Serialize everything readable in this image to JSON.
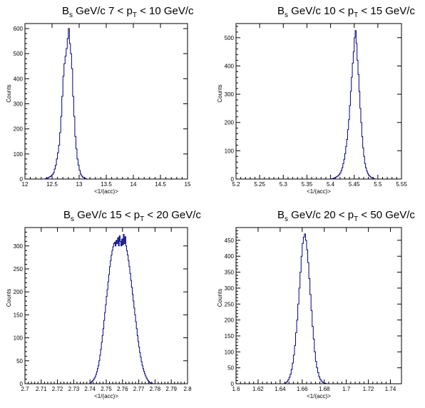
{
  "chart_data": [
    {
      "type": "histogram",
      "title": {
        "main": "B",
        "sub": "s",
        "mid": " GeV/c 7 < p",
        "sub2": "T",
        "end": " < 10 GeV/c"
      },
      "xlabel": "<1/(acc)>",
      "ylabel": "Counts",
      "xlim": [
        12,
        15
      ],
      "ylim": [
        0,
        620
      ],
      "xticks": [
        "12",
        "12.5",
        "13",
        "13.5",
        "14",
        "14.5",
        "15"
      ],
      "yticks": [
        "0",
        "100",
        "200",
        "300",
        "400",
        "500",
        "600"
      ],
      "grid": false,
      "line_color": "#000080",
      "bin_width": 0.02,
      "bins": [
        [
          12.36,
          0
        ],
        [
          12.38,
          2
        ],
        [
          12.4,
          3
        ],
        [
          12.42,
          5
        ],
        [
          12.44,
          8
        ],
        [
          12.46,
          10
        ],
        [
          12.48,
          14
        ],
        [
          12.5,
          18
        ],
        [
          12.52,
          25
        ],
        [
          12.54,
          40
        ],
        [
          12.56,
          55
        ],
        [
          12.58,
          80
        ],
        [
          12.6,
          105
        ],
        [
          12.62,
          135
        ],
        [
          12.64,
          185
        ],
        [
          12.66,
          250
        ],
        [
          12.68,
          330
        ],
        [
          12.7,
          410
        ],
        [
          12.72,
          460
        ],
        [
          12.74,
          490
        ],
        [
          12.76,
          520
        ],
        [
          12.78,
          560
        ],
        [
          12.8,
          600
        ],
        [
          12.82,
          540
        ],
        [
          12.84,
          500
        ],
        [
          12.86,
          440
        ],
        [
          12.88,
          330
        ],
        [
          12.9,
          250
        ],
        [
          12.92,
          170
        ],
        [
          12.94,
          120
        ],
        [
          12.96,
          80
        ],
        [
          12.98,
          55
        ],
        [
          13.0,
          35
        ],
        [
          13.02,
          20
        ],
        [
          13.04,
          12
        ],
        [
          13.06,
          8
        ],
        [
          13.08,
          5
        ],
        [
          13.1,
          3
        ],
        [
          13.12,
          1
        ]
      ]
    },
    {
      "type": "histogram",
      "title": {
        "main": "B",
        "sub": "s",
        "mid": " GeV/c 10 < p",
        "sub2": "T",
        "end": " < 15 GeV/c"
      },
      "xlabel": "<1/(acc)>",
      "ylabel": "Counts",
      "xlim": [
        5.2,
        5.55
      ],
      "ylim": [
        0,
        550
      ],
      "xticks": [
        "5.2",
        "5.25",
        "5.3",
        "5.35",
        "5.4",
        "5.45",
        "5.5",
        "5.55"
      ],
      "yticks": [
        "0",
        "100",
        "200",
        "300",
        "400",
        "500"
      ],
      "grid": false,
      "line_color": "#000080",
      "bin_width": 0.002,
      "bins": [
        [
          5.4,
          0
        ],
        [
          5.402,
          1
        ],
        [
          5.404,
          2
        ],
        [
          5.406,
          3
        ],
        [
          5.408,
          4
        ],
        [
          5.41,
          6
        ],
        [
          5.412,
          8
        ],
        [
          5.414,
          10
        ],
        [
          5.416,
          13
        ],
        [
          5.418,
          17
        ],
        [
          5.42,
          22
        ],
        [
          5.422,
          30
        ],
        [
          5.424,
          40
        ],
        [
          5.426,
          55
        ],
        [
          5.428,
          70
        ],
        [
          5.43,
          90
        ],
        [
          5.432,
          115
        ],
        [
          5.434,
          140
        ],
        [
          5.436,
          175
        ],
        [
          5.438,
          210
        ],
        [
          5.44,
          260
        ],
        [
          5.442,
          310
        ],
        [
          5.444,
          360
        ],
        [
          5.446,
          410
        ],
        [
          5.448,
          450
        ],
        [
          5.45,
          500
        ],
        [
          5.452,
          525
        ],
        [
          5.454,
          480
        ],
        [
          5.456,
          420
        ],
        [
          5.458,
          370
        ],
        [
          5.46,
          310
        ],
        [
          5.462,
          250
        ],
        [
          5.464,
          200
        ],
        [
          5.466,
          150
        ],
        [
          5.468,
          110
        ],
        [
          5.47,
          80
        ],
        [
          5.472,
          55
        ],
        [
          5.474,
          40
        ],
        [
          5.476,
          28
        ],
        [
          5.478,
          20
        ],
        [
          5.48,
          14
        ],
        [
          5.482,
          10
        ],
        [
          5.484,
          7
        ],
        [
          5.486,
          5
        ],
        [
          5.488,
          3
        ],
        [
          5.49,
          2
        ],
        [
          5.492,
          1
        ]
      ]
    },
    {
      "type": "histogram",
      "title": {
        "main": "B",
        "sub": "s",
        "mid": " GeV/c 15 < p",
        "sub2": "T",
        "end": " < 20 GeV/c"
      },
      "xlabel": "<1/(acc)>",
      "ylabel": "Counts",
      "xlim": [
        2.7,
        2.8
      ],
      "ylim": [
        0,
        340
      ],
      "xticks": [
        "2.7",
        "2.71",
        "2.72",
        "2.73",
        "2.74",
        "2.75",
        "2.76",
        "2.77",
        "2.78",
        "2.79",
        "2.8"
      ],
      "yticks": [
        "0",
        "50",
        "100",
        "150",
        "200",
        "250",
        "300"
      ],
      "grid": false,
      "line_color": "#000080",
      "bin_width": 0.0005,
      "bins": [
        [
          2.7395,
          0
        ],
        [
          2.74,
          2
        ],
        [
          2.7405,
          3
        ],
        [
          2.741,
          5
        ],
        [
          2.7415,
          7
        ],
        [
          2.742,
          9
        ],
        [
          2.7425,
          12
        ],
        [
          2.743,
          15
        ],
        [
          2.7435,
          20
        ],
        [
          2.744,
          26
        ],
        [
          2.7445,
          33
        ],
        [
          2.745,
          40
        ],
        [
          2.7455,
          50
        ],
        [
          2.746,
          62
        ],
        [
          2.7465,
          75
        ],
        [
          2.747,
          90
        ],
        [
          2.7475,
          105
        ],
        [
          2.748,
          120
        ],
        [
          2.7485,
          138
        ],
        [
          2.749,
          155
        ],
        [
          2.7495,
          172
        ],
        [
          2.75,
          190
        ],
        [
          2.7505,
          205
        ],
        [
          2.751,
          222
        ],
        [
          2.7515,
          238
        ],
        [
          2.752,
          255
        ],
        [
          2.7525,
          268
        ],
        [
          2.753,
          280
        ],
        [
          2.7535,
          290
        ],
        [
          2.754,
          298
        ],
        [
          2.7545,
          305
        ],
        [
          2.755,
          308
        ],
        [
          2.7555,
          300
        ],
        [
          2.756,
          312
        ],
        [
          2.7565,
          305
        ],
        [
          2.757,
          318
        ],
        [
          2.7575,
          300
        ],
        [
          2.758,
          322
        ],
        [
          2.7585,
          310
        ],
        [
          2.759,
          300
        ],
        [
          2.7595,
          315
        ],
        [
          2.76,
          302
        ],
        [
          2.7605,
          325
        ],
        [
          2.761,
          305
        ],
        [
          2.7615,
          320
        ],
        [
          2.762,
          300
        ],
        [
          2.7625,
          290
        ],
        [
          2.763,
          280
        ],
        [
          2.7635,
          268
        ],
        [
          2.764,
          255
        ],
        [
          2.7645,
          240
        ],
        [
          2.765,
          225
        ],
        [
          2.7655,
          210
        ],
        [
          2.766,
          195
        ],
        [
          2.7665,
          180
        ],
        [
          2.767,
          165
        ],
        [
          2.7675,
          150
        ],
        [
          2.768,
          135
        ],
        [
          2.7685,
          120
        ],
        [
          2.769,
          105
        ],
        [
          2.7695,
          92
        ],
        [
          2.77,
          80
        ],
        [
          2.7705,
          68
        ],
        [
          2.771,
          58
        ],
        [
          2.7715,
          48
        ],
        [
          2.772,
          40
        ],
        [
          2.7725,
          33
        ],
        [
          2.773,
          27
        ],
        [
          2.7735,
          22
        ],
        [
          2.774,
          17
        ],
        [
          2.7745,
          13
        ],
        [
          2.775,
          10
        ],
        [
          2.7755,
          7
        ],
        [
          2.776,
          5
        ],
        [
          2.7765,
          3
        ],
        [
          2.777,
          2
        ],
        [
          2.7775,
          1
        ],
        [
          2.778,
          1
        ],
        [
          2.7785,
          0
        ]
      ]
    },
    {
      "type": "histogram",
      "title": {
        "main": "B",
        "sub": "s",
        "mid": " GeV/c 20 < p",
        "sub2": "T",
        "end": " < 50 GeV/c"
      },
      "xlabel": "<1/(acc)>",
      "ylabel": "Counts",
      "xlim": [
        1.6,
        1.75
      ],
      "ylim": [
        0,
        490
      ],
      "xticks": [
        "1.6",
        "1.62",
        "1.64",
        "1.66",
        "1.68",
        "1.7",
        "1.72",
        "1.74"
      ],
      "yticks": [
        "0",
        "50",
        "100",
        "150",
        "200",
        "250",
        "300",
        "350",
        "400",
        "450"
      ],
      "grid": false,
      "line_color": "#000080",
      "bin_width": 0.001,
      "bins": [
        [
          1.643,
          0
        ],
        [
          1.644,
          2
        ],
        [
          1.645,
          4
        ],
        [
          1.646,
          7
        ],
        [
          1.647,
          12
        ],
        [
          1.648,
          20
        ],
        [
          1.649,
          30
        ],
        [
          1.65,
          45
        ],
        [
          1.651,
          65
        ],
        [
          1.652,
          90
        ],
        [
          1.653,
          120
        ],
        [
          1.654,
          160
        ],
        [
          1.655,
          200
        ],
        [
          1.656,
          250
        ],
        [
          1.657,
          300
        ],
        [
          1.658,
          350
        ],
        [
          1.659,
          400
        ],
        [
          1.66,
          440
        ],
        [
          1.661,
          460
        ],
        [
          1.662,
          470
        ],
        [
          1.663,
          450
        ],
        [
          1.664,
          420
        ],
        [
          1.665,
          380
        ],
        [
          1.666,
          330
        ],
        [
          1.667,
          280
        ],
        [
          1.668,
          230
        ],
        [
          1.669,
          180
        ],
        [
          1.67,
          140
        ],
        [
          1.671,
          100
        ],
        [
          1.672,
          70
        ],
        [
          1.673,
          50
        ],
        [
          1.674,
          35
        ],
        [
          1.675,
          22
        ],
        [
          1.676,
          14
        ],
        [
          1.677,
          9
        ],
        [
          1.678,
          5
        ],
        [
          1.679,
          3
        ],
        [
          1.68,
          2
        ],
        [
          1.681,
          1
        ],
        [
          1.682,
          0
        ]
      ]
    }
  ]
}
